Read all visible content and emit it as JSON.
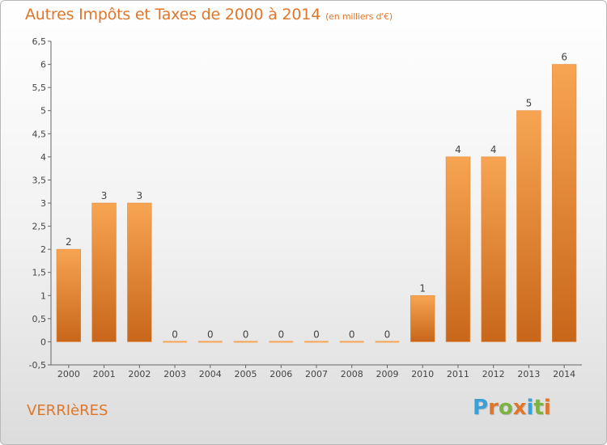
{
  "title": "Autres Impôts et Taxes de 2000 à 2014",
  "title_unit": "(en milliers d'€)",
  "commune": "VERRIèRES",
  "logo": {
    "letters": [
      "P",
      "r",
      "o",
      "x",
      "i",
      "t",
      "i"
    ],
    "colors": [
      "#3aa0d8",
      "#e0762a",
      "#7cb342",
      "#e0762a",
      "#3aa0d8",
      "#7cb342",
      "#e0762a"
    ]
  },
  "colors": {
    "bar_light": "#f7a552",
    "bar_dark": "#c8661a",
    "axis": "#555555",
    "accent": "#e0762a"
  },
  "chart_data": {
    "type": "bar",
    "title": "Autres Impôts et Taxes de 2000 à 2014",
    "categories": [
      "2000",
      "2001",
      "2002",
      "2003",
      "2004",
      "2005",
      "2006",
      "2007",
      "2008",
      "2009",
      "2010",
      "2011",
      "2012",
      "2013",
      "2014"
    ],
    "values": [
      2,
      3,
      3,
      0,
      0,
      0,
      0,
      0,
      0,
      0,
      1,
      4,
      4,
      5,
      6
    ],
    "ylim": [
      -0.5,
      6.5
    ],
    "yticks": [
      "-0,5",
      "0",
      "0,5",
      "1",
      "1,5",
      "2",
      "2,5",
      "3",
      "3,5",
      "4",
      "4,5",
      "5",
      "5,5",
      "6",
      "6,5"
    ],
    "ytick_values": [
      -0.5,
      0,
      0.5,
      1,
      1.5,
      2,
      2.5,
      3,
      3.5,
      4,
      4.5,
      5,
      5.5,
      6,
      6.5
    ],
    "grid": false,
    "legend": "none"
  }
}
